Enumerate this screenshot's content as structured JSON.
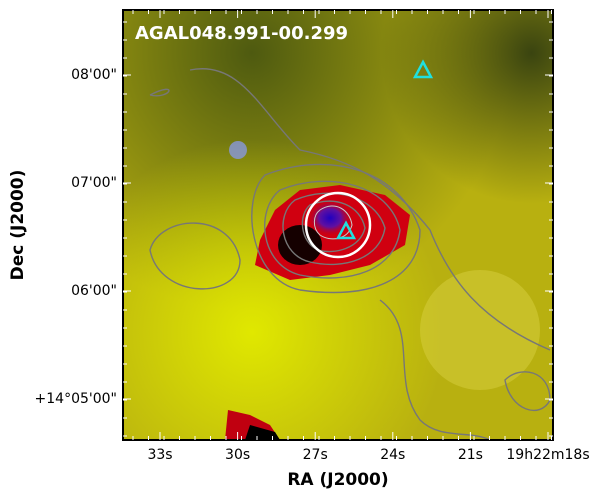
{
  "image": {
    "label": "AGAL048.991-00.299"
  },
  "axes": {
    "x_label": "RA (J2000)",
    "y_label": "Dec (J2000)",
    "x_ticks": [
      "33s",
      "30s",
      "27s",
      "24s",
      "21s",
      "19h22m18s"
    ],
    "y_ticks": [
      "08'00\"",
      "07'00\"",
      "06'00\"",
      "+14°05'00\""
    ]
  }
}
